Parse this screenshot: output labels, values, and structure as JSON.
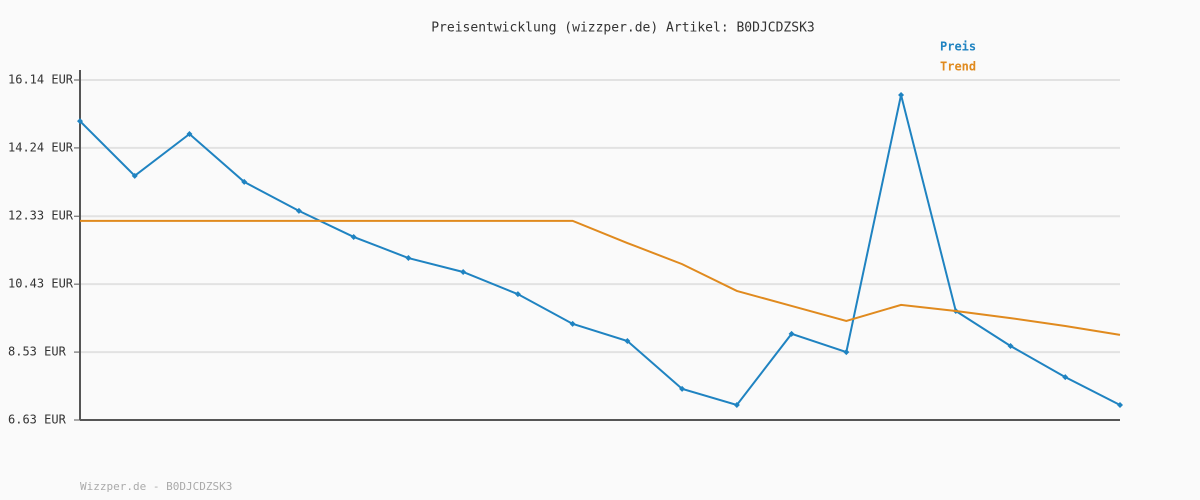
{
  "chart_data": {
    "type": "line",
    "title": "Preisentwicklung (wizzper.de) Artikel: B0DJCDZSK3",
    "footer": "Wizzper.de - B0DJCDZSK3",
    "series": [
      {
        "name": "Preis",
        "color": "#1f83c1",
        "markers": true,
        "values": [
          14.99,
          13.46,
          14.63,
          13.29,
          12.48,
          11.75,
          11.16,
          10.77,
          10.15,
          9.32,
          8.84,
          7.5,
          7.05,
          9.04,
          8.53,
          15.72,
          9.68,
          8.7,
          7.83,
          7.05
        ]
      },
      {
        "name": "Trend",
        "color": "#e08a1e",
        "markers": false,
        "values": [
          12.2,
          12.2,
          12.2,
          12.2,
          12.2,
          12.2,
          12.2,
          12.2,
          12.2,
          12.2,
          11.58,
          10.99,
          10.24,
          9.82,
          9.4,
          9.85,
          9.68,
          9.48,
          9.26,
          9.01
        ]
      }
    ],
    "ylim": [
      6.63,
      16.14
    ],
    "yticks": [
      {
        "value": 6.63,
        "label": "6.63 EUR"
      },
      {
        "value": 8.53,
        "label": "8.53 EUR"
      },
      {
        "value": 10.43,
        "label": "10.43 EUR"
      },
      {
        "value": 12.33,
        "label": "12.33 EUR"
      },
      {
        "value": 14.24,
        "label": "14.24 EUR"
      },
      {
        "value": 16.14,
        "label": "16.14 EUR"
      }
    ],
    "grid": true,
    "legend": "top-right"
  }
}
